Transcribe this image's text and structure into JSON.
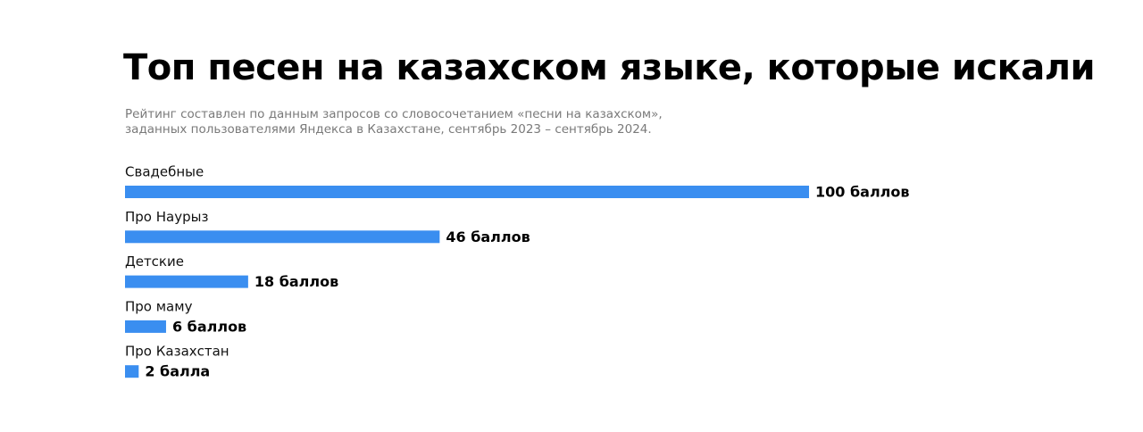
{
  "chart_data": {
    "type": "bar",
    "orientation": "horizontal",
    "title": "Топ песен на казахском языке, которые искали",
    "subtitle": [
      "Рейтинг составлен по данным запросов со словосочетанием «песни на казахском»,",
      "заданных пользователями Яндекса в Казахстане, сентябрь 2023 – сентябрь 2024."
    ],
    "categories": [
      "Свадебные",
      "Про Наурыз",
      "Детские",
      "Про маму",
      "Про Казахстан"
    ],
    "values": [
      100,
      46,
      18,
      6,
      2
    ],
    "value_labels": [
      "100 баллов",
      "46 баллов",
      "18 баллов",
      "6 баллов",
      "2 балла"
    ],
    "color": "#3a8ef0"
  }
}
